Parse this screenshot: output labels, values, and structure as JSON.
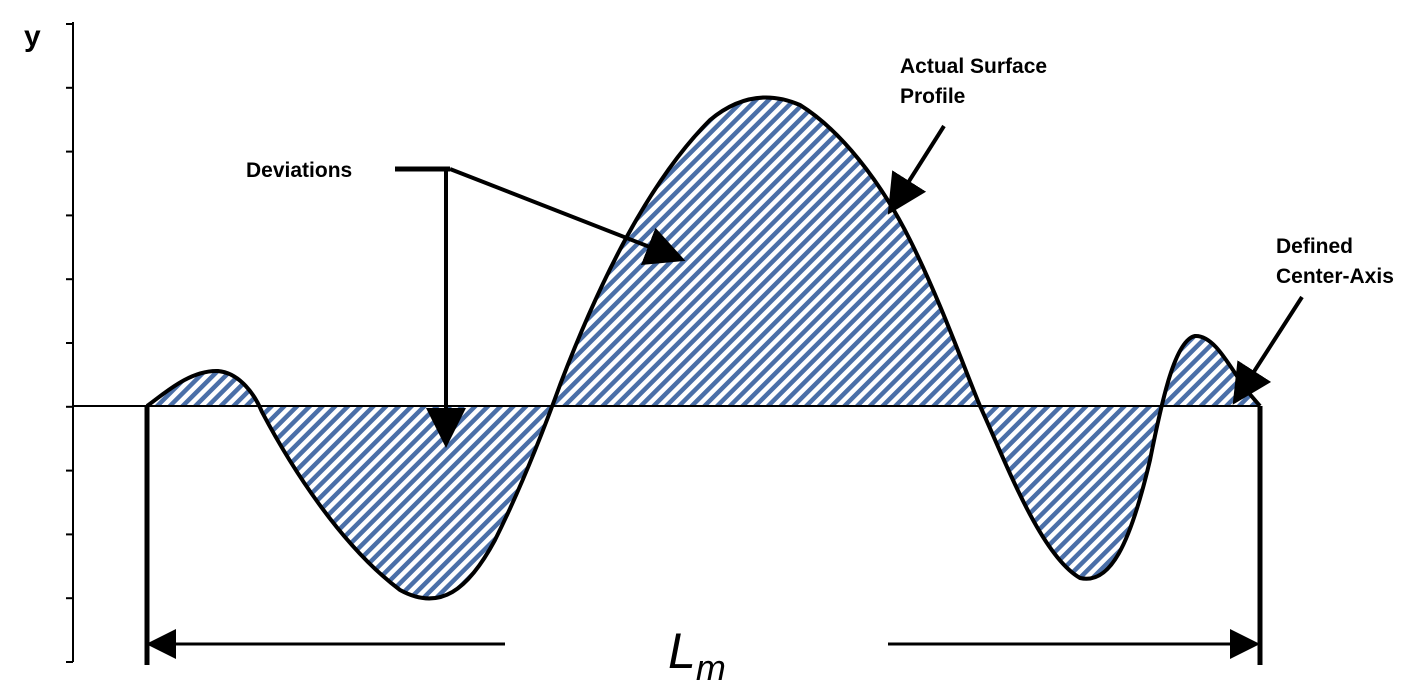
{
  "axis": {
    "y_label": "y",
    "tick_count": 10
  },
  "labels": {
    "deviations": "Deviations",
    "actual_surface_profile": [
      "Actual Surface",
      "Profile"
    ],
    "defined_center_axis": [
      "Defined",
      "Center-Axis"
    ],
    "length_main": "L",
    "length_sub": "m"
  },
  "colors": {
    "hatch": "#4a6fa8",
    "outline": "#000000",
    "background": "#ffffff"
  }
}
